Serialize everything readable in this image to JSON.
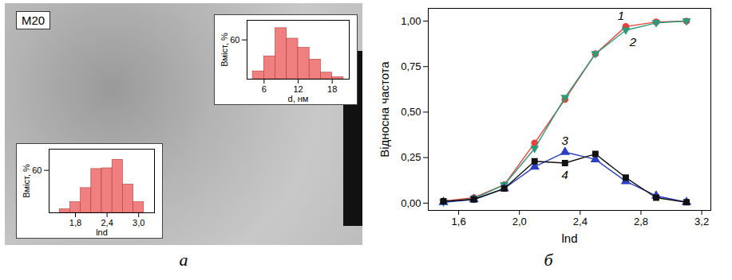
{
  "image": {
    "label": "M20"
  },
  "chart_data": [
    {
      "type": "histogram",
      "panel": "а",
      "bins": [
        4,
        6,
        8,
        10,
        12,
        14,
        16,
        18,
        20
      ],
      "values": [
        12,
        35,
        78,
        62,
        48,
        30,
        10,
        3
      ],
      "color": "#f08080",
      "x_label": "d, нм",
      "y_label": "Вміст, %",
      "xlim": [
        3,
        21
      ],
      "xticks": [
        6,
        12,
        18
      ],
      "ylim": [
        0,
        90
      ],
      "yticks": [
        60
      ]
    },
    {
      "type": "histogram",
      "panel": "а",
      "bins": [
        1.5,
        1.7,
        1.9,
        2.1,
        2.3,
        2.5,
        2.7,
        2.9,
        3.1
      ],
      "values": [
        5,
        15,
        35,
        62,
        63,
        75,
        40,
        15
      ],
      "color": "#f08080",
      "x_label": "lnd",
      "y_label": "Вміст, %",
      "xlim": [
        1.3,
        3.3
      ],
      "xticks": [
        {
          "value": 1.8,
          "label": "1,8"
        },
        {
          "value": 2.4,
          "label": "2,4"
        },
        {
          "value": 3.0,
          "label": "3,0"
        }
      ],
      "ylim": [
        0,
        90
      ],
      "yticks": [
        60
      ]
    },
    {
      "type": "line",
      "panel": "б",
      "x_label": "lnd",
      "y_label": "Відносна частота",
      "x": [
        1.5,
        1.7,
        1.9,
        2.1,
        2.3,
        2.5,
        2.7,
        2.9,
        3.1
      ],
      "series": [
        {
          "name": "1",
          "color": "#e8413c",
          "marker": "circle",
          "values": [
            0.01,
            0.03,
            0.1,
            0.33,
            0.57,
            0.82,
            0.97,
            0.995,
            1.0
          ]
        },
        {
          "name": "2",
          "color": "#2e9a78",
          "marker": "triangle-down",
          "values": [
            0.005,
            0.025,
            0.1,
            0.3,
            0.58,
            0.82,
            0.95,
            0.99,
            1.0
          ]
        },
        {
          "name": "3",
          "color": "#2b3fbf",
          "marker": "triangle",
          "values": [
            0.005,
            0.02,
            0.08,
            0.2,
            0.28,
            0.24,
            0.12,
            0.04,
            0.005
          ]
        },
        {
          "name": "4",
          "color": "#111111",
          "marker": "square",
          "values": [
            0.01,
            0.02,
            0.08,
            0.23,
            0.22,
            0.27,
            0.14,
            0.03,
            0.005
          ]
        }
      ],
      "xlim": [
        1.4,
        3.26
      ],
      "xticks": [
        {
          "value": 1.6,
          "label": "1,6"
        },
        {
          "value": 2.0,
          "label": "2,0"
        },
        {
          "value": 2.4,
          "label": "2,4"
        },
        {
          "value": 2.8,
          "label": "2,8"
        },
        {
          "value": 3.2,
          "label": "3,2"
        }
      ],
      "ylim": [
        -0.04,
        1.07
      ],
      "yticks": [
        {
          "value": 0,
          "label": "0,00"
        },
        {
          "value": 0.25,
          "label": "0,25"
        },
        {
          "value": 0.5,
          "label": "0,50"
        },
        {
          "value": 0.75,
          "label": "0,75"
        },
        {
          "value": 1.0,
          "label": "1,00"
        }
      ]
    }
  ]
}
